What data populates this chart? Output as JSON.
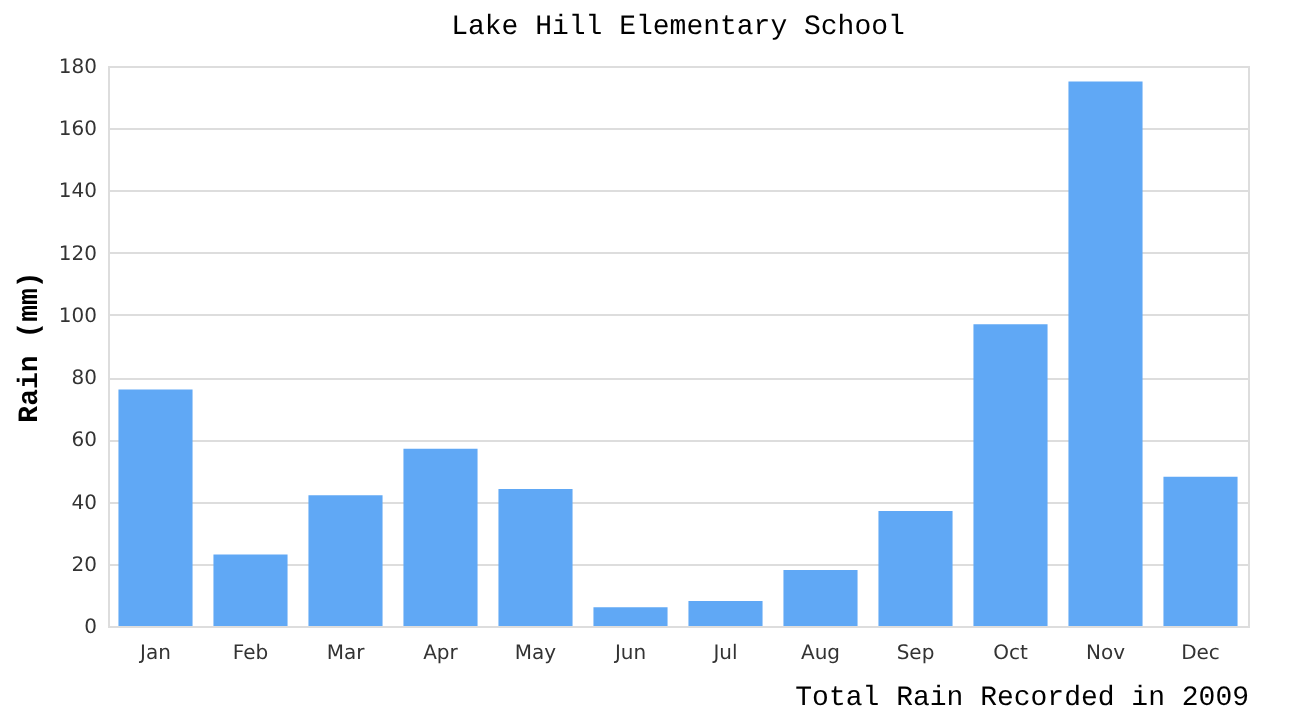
{
  "chart_data": {
    "type": "bar",
    "title": "Lake Hill Elementary School",
    "xlabel": "Total Rain Recorded in 2009",
    "ylabel": "Rain (mm)",
    "categories": [
      "Jan",
      "Feb",
      "Mar",
      "Apr",
      "May",
      "Jun",
      "Jul",
      "Aug",
      "Sep",
      "Oct",
      "Nov",
      "Dec"
    ],
    "values": [
      76,
      23,
      42,
      57,
      44,
      6,
      8,
      18,
      37,
      97,
      175,
      48
    ],
    "color": "#60a8f5",
    "ylim": [
      0,
      180
    ],
    "yticks": [
      0,
      20,
      40,
      60,
      80,
      100,
      120,
      140,
      160,
      180
    ],
    "grid": "y"
  }
}
